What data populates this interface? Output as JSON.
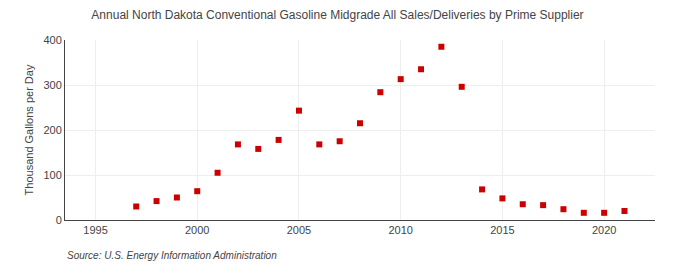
{
  "chart_data": {
    "type": "scatter",
    "title": "Annual North Dakota Conventional Gasoline Midgrade All Sales/Deliveries by Prime Supplier",
    "ylabel": "Thousand Gallons per Day",
    "annotation": "Source: U.S. Energy Information Administration",
    "x": [
      1997,
      1998,
      1999,
      2000,
      2001,
      2002,
      2003,
      2004,
      2005,
      2006,
      2007,
      2008,
      2009,
      2010,
      2011,
      2012,
      2013,
      2014,
      2015,
      2016,
      2017,
      2018,
      2019,
      2020,
      2021
    ],
    "values": [
      30,
      42,
      50,
      64,
      105,
      168,
      158,
      178,
      243,
      168,
      175,
      215,
      284,
      313,
      335,
      385,
      296,
      68,
      48,
      35,
      33,
      24,
      16,
      16,
      20
    ],
    "color": "#cc0000",
    "marker": "square",
    "xlim": [
      1993.5,
      2022.5
    ],
    "ylim": [
      0,
      400
    ],
    "xticks": [
      1995,
      2000,
      2005,
      2010,
      2015,
      2020
    ],
    "yticks": [
      0,
      100,
      200,
      300,
      400
    ],
    "grid": true
  }
}
